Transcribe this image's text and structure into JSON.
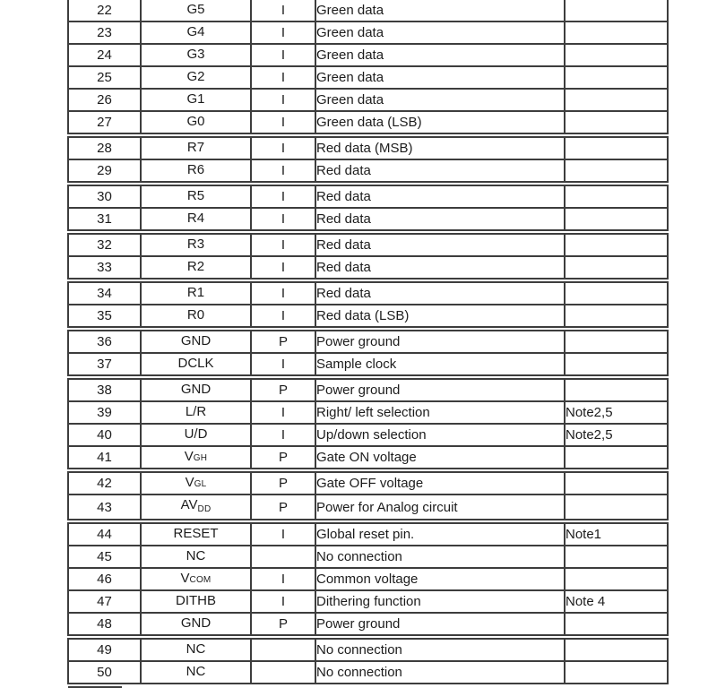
{
  "colors": {
    "border": "#3d3d3d",
    "text": "#1c1c1c",
    "background": "#ffffff"
  },
  "table": {
    "col_names": [
      "pin-number",
      "symbol",
      "io-type",
      "description",
      "note"
    ],
    "sections": [
      {
        "rows": [
          {
            "pin": "22",
            "sym": "G5",
            "sub": "",
            "drop": false,
            "io": "I",
            "desc": "Green data",
            "note": ""
          },
          {
            "pin": "23",
            "sym": "G4",
            "sub": "",
            "drop": false,
            "io": "I",
            "desc": "Green data",
            "note": ""
          },
          {
            "pin": "24",
            "sym": "G3",
            "sub": "",
            "drop": false,
            "io": "I",
            "desc": "Green data",
            "note": ""
          },
          {
            "pin": "25",
            "sym": "G2",
            "sub": "",
            "drop": false,
            "io": "I",
            "desc": "Green data",
            "note": ""
          },
          {
            "pin": "26",
            "sym": "G1",
            "sub": "",
            "drop": false,
            "io": "I",
            "desc": "Green data",
            "note": ""
          },
          {
            "pin": "27",
            "sym": "G0",
            "sub": "",
            "drop": false,
            "io": "I",
            "desc": "Green data (LSB)",
            "note": ""
          }
        ]
      },
      {
        "rows": [
          {
            "pin": "28",
            "sym": "R7",
            "sub": "",
            "drop": false,
            "io": "I",
            "desc": "Red data (MSB)",
            "note": ""
          },
          {
            "pin": "29",
            "sym": "R6",
            "sub": "",
            "drop": false,
            "io": "I",
            "desc": "Red data",
            "note": ""
          }
        ]
      },
      {
        "rows": [
          {
            "pin": "30",
            "sym": "R5",
            "sub": "",
            "drop": false,
            "io": "I",
            "desc": "Red data",
            "note": ""
          },
          {
            "pin": "31",
            "sym": "R4",
            "sub": "",
            "drop": false,
            "io": "I",
            "desc": "Red data",
            "note": ""
          }
        ]
      },
      {
        "rows": [
          {
            "pin": "32",
            "sym": "R3",
            "sub": "",
            "drop": false,
            "io": "I",
            "desc": "Red data",
            "note": ""
          },
          {
            "pin": "33",
            "sym": "R2",
            "sub": "",
            "drop": false,
            "io": "I",
            "desc": "Red data",
            "note": ""
          }
        ]
      },
      {
        "rows": [
          {
            "pin": "34",
            "sym": "R1",
            "sub": "",
            "drop": false,
            "io": "I",
            "desc": "Red data",
            "note": ""
          },
          {
            "pin": "35",
            "sym": "R0",
            "sub": "",
            "drop": false,
            "io": "I",
            "desc": "Red data (LSB)",
            "note": ""
          }
        ]
      },
      {
        "rows": [
          {
            "pin": "36",
            "sym": "GND",
            "sub": "",
            "drop": false,
            "io": "P",
            "desc": "Power ground",
            "note": ""
          },
          {
            "pin": "37",
            "sym": "DCLK",
            "sub": "",
            "drop": false,
            "io": "I",
            "desc": "Sample clock",
            "note": ""
          }
        ]
      },
      {
        "rows": [
          {
            "pin": "38",
            "sym": "GND",
            "sub": "",
            "drop": false,
            "io": "P",
            "desc": "Power ground",
            "note": ""
          },
          {
            "pin": "39",
            "sym": "L/R",
            "sub": "",
            "drop": false,
            "io": "I",
            "desc": "Right/ left selection",
            "note": "Note2,5"
          },
          {
            "pin": "40",
            "sym": "U/D",
            "sub": "",
            "drop": false,
            "io": "I",
            "desc": "Up/down selection",
            "note": "Note2,5"
          },
          {
            "pin": "41",
            "sym": "V",
            "sub": "GH",
            "drop": false,
            "io": "P",
            "desc": "Gate ON voltage",
            "note": ""
          }
        ]
      },
      {
        "rows": [
          {
            "pin": "42",
            "sym": "V",
            "sub": "GL",
            "drop": false,
            "io": "P",
            "desc": "Gate OFF voltage",
            "note": ""
          },
          {
            "pin": "43",
            "sym": "AV",
            "sub": "DD",
            "drop": true,
            "io": "P",
            "desc": "Power for Analog circuit",
            "note": ""
          }
        ]
      },
      {
        "rows": [
          {
            "pin": "44",
            "sym": "RESET",
            "sub": "",
            "drop": false,
            "io": "I",
            "desc": "Global reset pin.",
            "note": "Note1"
          },
          {
            "pin": "45",
            "sym": "NC",
            "sub": "",
            "drop": false,
            "io": "",
            "desc": "No connection",
            "note": ""
          },
          {
            "pin": "46",
            "sym": "V",
            "sub": "COM",
            "drop": false,
            "io": "I",
            "desc": "Common voltage",
            "note": ""
          },
          {
            "pin": "47",
            "sym": "DITHB",
            "sub": "",
            "drop": false,
            "io": "I",
            "desc": "Dithering function",
            "note": "Note 4"
          },
          {
            "pin": "48",
            "sym": "GND",
            "sub": "",
            "drop": false,
            "io": "P",
            "desc": "Power ground",
            "note": ""
          }
        ]
      },
      {
        "rows": [
          {
            "pin": "49",
            "sym": "NC",
            "sub": "",
            "drop": false,
            "io": "",
            "desc": "No connection",
            "note": ""
          },
          {
            "pin": "50",
            "sym": "NC",
            "sub": "",
            "drop": false,
            "io": "",
            "desc": "No connection",
            "note": ""
          }
        ]
      }
    ]
  }
}
